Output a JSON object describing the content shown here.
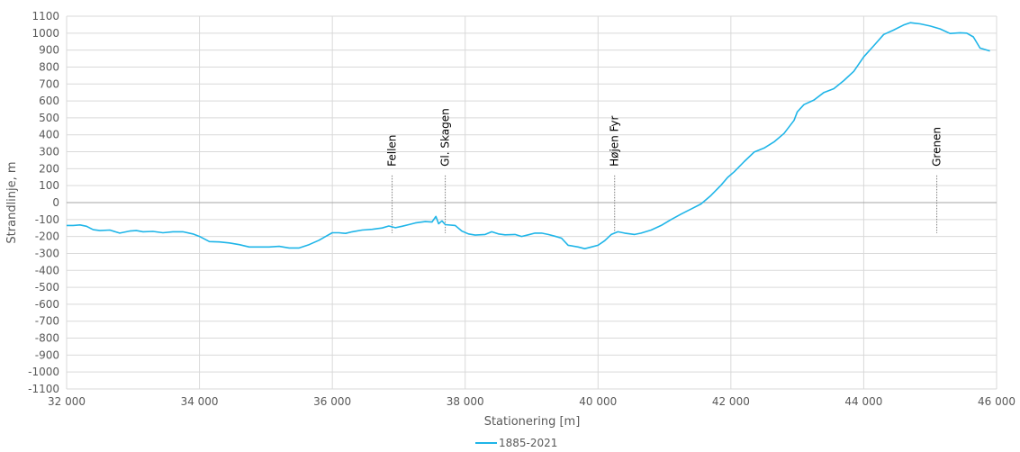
{
  "chart_data": {
    "type": "line",
    "xlabel": "Stationering [m]",
    "ylabel": "Strandlinje, m",
    "xlim": [
      32000,
      46000
    ],
    "ylim": [
      -1100,
      1100
    ],
    "x_ticks": [
      32000,
      34000,
      36000,
      38000,
      40000,
      42000,
      44000,
      46000
    ],
    "x_tick_labels": [
      "32 000",
      "34 000",
      "36 000",
      "38 000",
      "40 000",
      "42 000",
      "44 000",
      "46 000"
    ],
    "y_ticks": [
      1100,
      1000,
      900,
      800,
      700,
      600,
      500,
      400,
      300,
      200,
      100,
      0,
      -100,
      -200,
      -300,
      -400,
      -500,
      -600,
      -700,
      -800,
      -900,
      -1000,
      -1100
    ],
    "y_tick_labels": [
      "1100",
      "1000",
      "900",
      "800",
      "700",
      "600",
      "500",
      "400",
      "300",
      "200",
      "100",
      "0",
      "-100",
      "-200",
      "-300",
      "-400",
      "-500",
      "-600",
      "-700",
      "-800",
      "-900",
      "-1000",
      "-1100"
    ],
    "grid": true,
    "legend_position": "bottom-center",
    "annotations": [
      {
        "label": "Fellen",
        "x": 36900,
        "y_from": -180,
        "y_to": 160
      },
      {
        "label": "Gl. Skagen",
        "x": 37700,
        "y_from": -180,
        "y_to": 160
      },
      {
        "label": "Højen Fyr",
        "x": 40250,
        "y_from": -180,
        "y_to": 160
      },
      {
        "label": "Grenen",
        "x": 45100,
        "y_from": -180,
        "y_to": 160
      }
    ],
    "series": [
      {
        "name": "1885-2021",
        "color": "#1fb5e8",
        "points": [
          [
            32000,
            -135
          ],
          [
            32100,
            -135
          ],
          [
            32200,
            -132
          ],
          [
            32300,
            -140
          ],
          [
            32400,
            -160
          ],
          [
            32500,
            -165
          ],
          [
            32650,
            -162
          ],
          [
            32800,
            -180
          ],
          [
            32950,
            -168
          ],
          [
            33050,
            -165
          ],
          [
            33150,
            -172
          ],
          [
            33300,
            -170
          ],
          [
            33450,
            -178
          ],
          [
            33600,
            -172
          ],
          [
            33750,
            -172
          ],
          [
            33900,
            -185
          ],
          [
            34000,
            -200
          ],
          [
            34150,
            -230
          ],
          [
            34300,
            -232
          ],
          [
            34450,
            -238
          ],
          [
            34600,
            -248
          ],
          [
            34750,
            -262
          ],
          [
            34900,
            -262
          ],
          [
            35050,
            -262
          ],
          [
            35200,
            -258
          ],
          [
            35350,
            -268
          ],
          [
            35500,
            -268
          ],
          [
            35650,
            -248
          ],
          [
            35800,
            -222
          ],
          [
            35900,
            -200
          ],
          [
            36000,
            -178
          ],
          [
            36100,
            -178
          ],
          [
            36200,
            -182
          ],
          [
            36300,
            -172
          ],
          [
            36450,
            -162
          ],
          [
            36600,
            -158
          ],
          [
            36750,
            -150
          ],
          [
            36850,
            -138
          ],
          [
            36950,
            -148
          ],
          [
            37050,
            -140
          ],
          [
            37150,
            -130
          ],
          [
            37250,
            -120
          ],
          [
            37400,
            -112
          ],
          [
            37500,
            -115
          ],
          [
            37560,
            -82
          ],
          [
            37600,
            -125
          ],
          [
            37650,
            -108
          ],
          [
            37700,
            -130
          ],
          [
            37850,
            -135
          ],
          [
            37950,
            -168
          ],
          [
            38050,
            -185
          ],
          [
            38150,
            -192
          ],
          [
            38300,
            -188
          ],
          [
            38400,
            -172
          ],
          [
            38500,
            -185
          ],
          [
            38600,
            -190
          ],
          [
            38750,
            -188
          ],
          [
            38850,
            -200
          ],
          [
            38950,
            -190
          ],
          [
            39050,
            -180
          ],
          [
            39150,
            -180
          ],
          [
            39250,
            -188
          ],
          [
            39350,
            -198
          ],
          [
            39450,
            -210
          ],
          [
            39550,
            -252
          ],
          [
            39700,
            -262
          ],
          [
            39800,
            -272
          ],
          [
            39900,
            -262
          ],
          [
            40000,
            -252
          ],
          [
            40100,
            -225
          ],
          [
            40200,
            -188
          ],
          [
            40300,
            -172
          ],
          [
            40400,
            -180
          ],
          [
            40550,
            -188
          ],
          [
            40650,
            -180
          ],
          [
            40800,
            -162
          ],
          [
            40950,
            -135
          ],
          [
            41100,
            -100
          ],
          [
            41250,
            -68
          ],
          [
            41400,
            -38
          ],
          [
            41550,
            -8
          ],
          [
            41700,
            42
          ],
          [
            41850,
            102
          ],
          [
            41950,
            148
          ],
          [
            42050,
            182
          ],
          [
            42200,
            242
          ],
          [
            42350,
            298
          ],
          [
            42500,
            322
          ],
          [
            42650,
            358
          ],
          [
            42800,
            408
          ],
          [
            42950,
            485
          ],
          [
            43000,
            535
          ],
          [
            43100,
            578
          ],
          [
            43250,
            605
          ],
          [
            43400,
            650
          ],
          [
            43550,
            672
          ],
          [
            43700,
            720
          ],
          [
            43850,
            775
          ],
          [
            44000,
            860
          ],
          [
            44150,
            925
          ],
          [
            44300,
            992
          ],
          [
            44450,
            1018
          ],
          [
            44600,
            1048
          ],
          [
            44700,
            1062
          ],
          [
            44850,
            1055
          ],
          [
            45000,
            1042
          ],
          [
            45150,
            1025
          ],
          [
            45300,
            998
          ],
          [
            45450,
            1002
          ],
          [
            45550,
            1000
          ],
          [
            45650,
            978
          ],
          [
            45750,
            912
          ],
          [
            45900,
            895
          ]
        ]
      }
    ]
  }
}
